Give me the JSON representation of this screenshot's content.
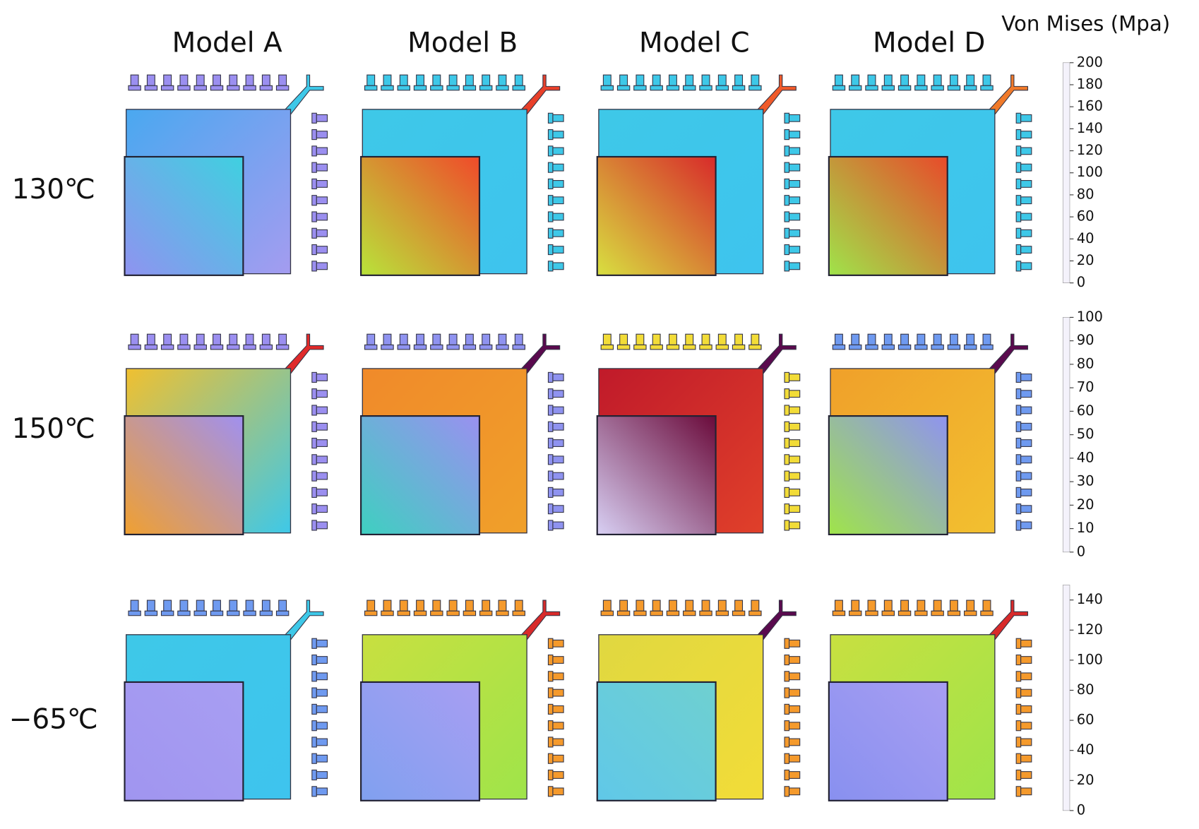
{
  "columns": [
    "Model A",
    "Model B",
    "Model C",
    "Model D"
  ],
  "rows": [
    "130℃",
    "150℃",
    "−65℃"
  ],
  "colorbar_title": "Von Mises (Mpa)",
  "colorbars": [
    {
      "lim": [
        0,
        200
      ],
      "ticks": [
        0,
        20,
        40,
        60,
        80,
        100,
        120,
        140,
        160,
        180,
        200
      ]
    },
    {
      "lim": [
        0,
        100
      ],
      "ticks": [
        0,
        10,
        20,
        30,
        40,
        50,
        60,
        70,
        80,
        90,
        100
      ]
    },
    {
      "lim": [
        0,
        150
      ],
      "ticks": [
        0,
        20,
        40,
        60,
        80,
        100,
        120,
        140
      ]
    }
  ]
}
